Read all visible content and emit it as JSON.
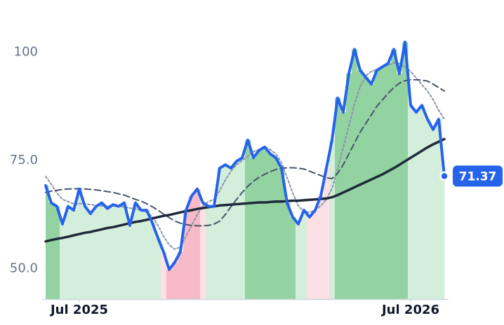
{
  "chart_data": {
    "type": "line",
    "categories": [
      null,
      null,
      null,
      null,
      null,
      null,
      "Jul 2025",
      null,
      null,
      null,
      null,
      null,
      null,
      null,
      null,
      null,
      null,
      null,
      null,
      null,
      null,
      null,
      null,
      null,
      null,
      null,
      null,
      null,
      null,
      null,
      null,
      null,
      null,
      null,
      null,
      null,
      null,
      null,
      null,
      null,
      null,
      null,
      null,
      null,
      null,
      null,
      null,
      null,
      null,
      null,
      null,
      null,
      null,
      null,
      null,
      null,
      null,
      null,
      null,
      null,
      null,
      null,
      null,
      null,
      null,
      "Jul 2026",
      null,
      null,
      null,
      null,
      null,
      null
    ],
    "ylim": [
      43,
      112
    ],
    "yticks": [
      {
        "value": 50,
        "label": "50.0"
      },
      {
        "value": 75,
        "label": "75.0"
      },
      100
    ],
    "shading_colors": [
      "#93d3a2",
      "#93d3a2",
      "#93d3a2",
      "#d3eeda",
      "#d3eeda",
      "#d3eeda",
      "#d3eeda",
      "#d3eeda",
      "#d3eeda",
      "#d3eeda",
      "#d3eeda",
      "#d3eeda",
      "#d3eeda",
      "#d3eeda",
      "#d3eeda",
      "#d3eeda",
      "#d3eeda",
      "#d3eeda",
      "#d3eeda",
      "#d3eeda",
      "#d3eeda",
      "#fde0e5",
      "#f8bac6",
      "#f8bac6",
      "#f8bac6",
      "#f8bac6",
      "#f8bac6",
      "#f8bac6",
      "#fde0e5",
      "#d3eeda",
      "#d3eeda",
      "#d3eeda",
      "#d3eeda",
      "#d3eeda",
      "#d3eeda",
      "#d3eeda",
      "#93d3a2",
      "#93d3a2",
      "#93d3a2",
      "#93d3a2",
      "#93d3a2",
      "#93d3a2",
      "#93d3a2",
      "#93d3a2",
      "#93d3a2",
      "#d3eeda",
      "#d3eeda",
      "#fde0e5",
      "#fde0e5",
      "#fde0e5",
      "#fde0e5",
      "#d3eeda",
      "#93d3a2",
      "#93d3a2",
      "#93d3a2",
      "#93d3a2",
      "#93d3a2",
      "#93d3a2",
      "#93d3a2",
      "#93d3a2",
      "#93d3a2",
      "#93d3a2",
      "#93d3a2",
      "#93d3a2",
      "#93d3a2",
      "#d3eeda",
      "#d3eeda",
      "#d3eeda",
      "#d3eeda",
      "#d3eeda",
      "#d3eeda",
      "#d3eeda"
    ],
    "series": [
      {
        "color": "#2563eb",
        "style": "solid",
        "values": [
          69.2,
          65.2,
          64.4,
          60.3,
          64.4,
          63.5,
          68.4,
          64.4,
          62.7,
          64.4,
          65.2,
          63.9,
          64.8,
          64.4,
          65.2,
          60,
          65.2,
          63.5,
          63.5,
          60.6,
          57.1,
          53.9,
          49.8,
          51.5,
          53.9,
          63.5,
          66.8,
          68.4,
          65.2,
          64.4,
          64.4,
          73.2,
          74,
          73.2,
          74.8,
          75.6,
          79.7,
          75.6,
          77.3,
          78.1,
          76.5,
          75.6,
          73.2,
          65.2,
          61.9,
          60.3,
          63.5,
          61.9,
          63.5,
          66.8,
          73.2,
          79.7,
          89.4,
          86.1,
          95,
          100.6,
          95.8,
          94.2,
          92.6,
          95.8,
          96.6,
          97.4,
          100.6,
          95,
          102.3,
          87.7,
          86.1,
          87.7,
          84.5,
          82.1,
          84.5,
          71.37
        ]
      },
      {
        "color": "#8a94a6",
        "style": "dotted",
        "values": [
          71.3,
          69.5,
          67.5,
          66,
          65.5,
          65,
          65,
          65,
          64.8,
          64.6,
          64.5,
          64.5,
          64.5,
          64.4,
          64.3,
          64,
          63.8,
          63.5,
          63,
          62,
          60,
          57.5,
          55.5,
          54.5,
          55,
          57.5,
          60,
          62.5,
          64.5,
          65.5,
          66,
          68,
          70.5,
          72.5,
          74,
          75,
          76,
          77,
          77.5,
          77.8,
          77.5,
          76.5,
          74.5,
          71,
          67.5,
          64.5,
          63.2,
          63,
          63.5,
          64.5,
          66,
          68.5,
          73,
          78,
          83,
          88,
          92,
          94.5,
          95.5,
          96,
          96.5,
          97,
          97.5,
          97.3,
          96.5,
          95.5,
          94,
          92.5,
          91,
          89,
          86.5,
          84.5
        ]
      },
      {
        "color": "#475569",
        "style": "dashed",
        "values": [
          67.6,
          67.9,
          68.1,
          68.3,
          68.4,
          68.4,
          68.5,
          68.4,
          68.3,
          68.2,
          68,
          67.8,
          67.6,
          67.3,
          67,
          66.5,
          66,
          65.6,
          65,
          64.3,
          63.5,
          62.6,
          61.8,
          61,
          60.5,
          60.2,
          60,
          59.9,
          59.9,
          60,
          60.3,
          61,
          62.5,
          64.3,
          66,
          67.6,
          69,
          70.2,
          71.1,
          71.8,
          72.4,
          72.9,
          73.2,
          73.3,
          73.3,
          73.2,
          73,
          72.5,
          72,
          71.5,
          71,
          70.8,
          72,
          74,
          76.5,
          79,
          81.5,
          83.5,
          85.5,
          87.5,
          89,
          90.5,
          91.8,
          92.8,
          93.4,
          93.6,
          93.6,
          93.5,
          93.3,
          92.6,
          91.8,
          91
        ]
      },
      {
        "color": "#1e293b",
        "style": "solid",
        "values": [
          56.3,
          56.6,
          56.9,
          57.1,
          57.4,
          57.7,
          58,
          58.3,
          58.5,
          58.8,
          59.1,
          59.4,
          59.6,
          59.9,
          60.2,
          60.5,
          60.8,
          61,
          61.3,
          61.6,
          61.9,
          62.2,
          62.4,
          62.7,
          63,
          63.3,
          63.5,
          63.8,
          64,
          64.2,
          64.4,
          64.6,
          64.7,
          64.8,
          64.9,
          65,
          65.1,
          65.2,
          65.3,
          65.3,
          65.4,
          65.5,
          65.5,
          65.6,
          65.7,
          65.7,
          65.8,
          65.9,
          66,
          66.1,
          66.2,
          66.5,
          67,
          67.6,
          68.2,
          68.8,
          69.4,
          70,
          70.6,
          71.2,
          71.8,
          72.5,
          73.2,
          74,
          74.8,
          75.6,
          76.4,
          77.2,
          78,
          78.7,
          79.3,
          79.9
        ]
      }
    ]
  }
}
